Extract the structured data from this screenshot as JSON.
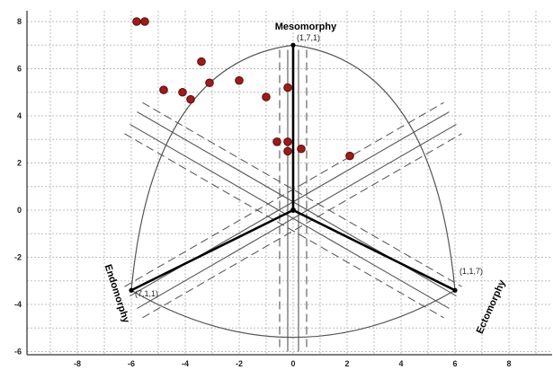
{
  "chart_data": {
    "type": "scatter",
    "title": "",
    "xlabel": "",
    "ylabel": "",
    "xlim": [
      -10,
      9.5
    ],
    "ylim": [
      -6,
      8.3
    ],
    "x_ticks": [
      -8,
      -6,
      -4,
      -2,
      0,
      2,
      4,
      6,
      8
    ],
    "y_ticks": [
      -6,
      -4,
      -2,
      0,
      2,
      4,
      6,
      8
    ],
    "grid": true,
    "points": [
      {
        "x": -5.8,
        "y": 8.0
      },
      {
        "x": -5.5,
        "y": 8.0
      },
      {
        "x": -3.4,
        "y": 6.3
      },
      {
        "x": -3.1,
        "y": 5.4
      },
      {
        "x": -2.0,
        "y": 5.5
      },
      {
        "x": -4.8,
        "y": 5.1
      },
      {
        "x": -4.1,
        "y": 5.0
      },
      {
        "x": -3.8,
        "y": 4.7
      },
      {
        "x": -1.0,
        "y": 4.8
      },
      {
        "x": -0.2,
        "y": 5.2
      },
      {
        "x": -0.6,
        "y": 2.9
      },
      {
        "x": -0.2,
        "y": 2.9
      },
      {
        "x": -0.2,
        "y": 2.5
      },
      {
        "x": 0.3,
        "y": 2.6
      },
      {
        "x": 2.1,
        "y": 2.3
      }
    ],
    "somatochart": {
      "center": [
        0,
        0
      ],
      "vertices": {
        "mesomorphy": [
          0,
          7
        ],
        "endomorphy": [
          -6,
          -3.4
        ],
        "ectomorphy": [
          6,
          -3.4
        ]
      }
    },
    "labels": {
      "mesomorphy": "Mesomorphy",
      "endomorphy": "Endomorphy",
      "ectomorphy": "Ectomorphy",
      "meso_vertex": "(1,7,1)",
      "endo_vertex": "(7,1,1)",
      "ecto_vertex": "(1,1,7)"
    }
  },
  "colors": {
    "background": "#ffffff",
    "grid": "#bdbdbd",
    "frame": "#555555",
    "axis_lines": "#000000",
    "outline": "#555555",
    "dashed": "#555555",
    "point_fill": "#9e1b1b",
    "point_stroke": "#5a0d0d"
  }
}
